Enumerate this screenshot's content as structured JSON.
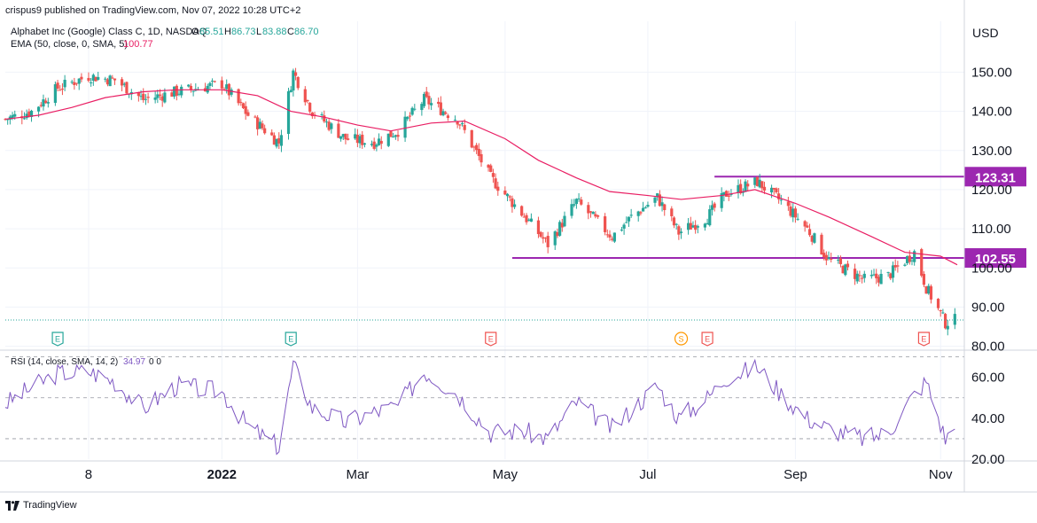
{
  "publisher_line": "crispus9 published on TradingView.com, Nov 07, 2022 10:28 UTC+2",
  "symbol_line": {
    "name": "Alphabet Inc (Google) Class C, 1D, NASDAQ",
    "o_label": "O",
    "o": "85.51",
    "h_label": "H",
    "h": "86.73",
    "l_label": "L",
    "l": "83.88",
    "c_label": "C",
    "c": "86.70"
  },
  "ema_line": {
    "label": "EMA (50, close, 0, SMA, 5)",
    "value": "100.77"
  },
  "rsi_line": {
    "label": "RSI (14, close, SMA, 14, 2)",
    "value": "34.97",
    "extra": "0 0"
  },
  "currency": "USD",
  "footer_brand": "TradingView",
  "colors": {
    "up": "#26a69a",
    "down": "#ef5350",
    "ema": "#e91e63",
    "rsi": "#7e57c2",
    "level": "#9c27b0",
    "grid": "#f0f3fa",
    "axis_text": "#131722",
    "earnings": "#ef5350",
    "earnings_green": "#26a69a",
    "split": "#ff9800"
  },
  "chart_data": [
    {
      "type": "candlestick",
      "title": "Alphabet Inc (Google) Class C, 1D, NASDAQ",
      "ylabel": "USD",
      "ylim": [
        79,
        163
      ],
      "y_ticks": [
        "150.00",
        "140.00",
        "130.00",
        "120.00",
        "110.00",
        "100.00",
        "90.00",
        "80.00"
      ],
      "x_ticks": [
        "8",
        "2022",
        "Mar",
        "May",
        "Jul",
        "Sep",
        "Nov"
      ],
      "x_tick_dates": [
        "2021-11-08",
        "2022-01-03",
        "2022-03-01",
        "2022-05-02",
        "2022-07-01",
        "2022-09-01",
        "2022-11-01"
      ],
      "x_range": [
        "2021-10-04",
        "2022-11-08"
      ],
      "last_price": 86.7,
      "levels": [
        {
          "label": "123.31",
          "value": 123.31,
          "start": "2022-07-29"
        },
        {
          "label": "102.55",
          "value": 102.55,
          "start": "2022-05-05"
        }
      ],
      "series": [
        {
          "name": "EMA (50, close, 0, SMA, 5)",
          "x": [
            "2021-10-04",
            "2021-10-18",
            "2021-11-01",
            "2021-11-15",
            "2021-12-01",
            "2021-12-15",
            "2022-01-03",
            "2022-01-18",
            "2022-02-01",
            "2022-02-15",
            "2022-03-01",
            "2022-03-15",
            "2022-04-01",
            "2022-04-15",
            "2022-05-02",
            "2022-05-16",
            "2022-06-01",
            "2022-06-15",
            "2022-07-01",
            "2022-07-15",
            "2022-08-01",
            "2022-08-15",
            "2022-09-01",
            "2022-09-15",
            "2022-10-03",
            "2022-10-17",
            "2022-11-01",
            "2022-11-08"
          ],
          "values": [
            138,
            139,
            141,
            143.5,
            145,
            145.5,
            145.5,
            144,
            140,
            138.5,
            136.5,
            135,
            137,
            137.5,
            133,
            127.5,
            123,
            119.5,
            118.5,
            117.5,
            118.5,
            120,
            116.5,
            113,
            108,
            104,
            103,
            100.8
          ]
        }
      ],
      "events": [
        {
          "label": "E",
          "date": "2021-10-26",
          "kind": "earnings",
          "color": "green"
        },
        {
          "label": "E",
          "date": "2022-02-01",
          "kind": "earnings",
          "color": "green"
        },
        {
          "label": "E",
          "date": "2022-04-26",
          "kind": "earnings",
          "color": "red"
        },
        {
          "label": "S",
          "date": "2022-07-15",
          "kind": "split",
          "color": "orange"
        },
        {
          "label": "E",
          "date": "2022-07-26",
          "kind": "earnings",
          "color": "red"
        },
        {
          "label": "E",
          "date": "2022-10-25",
          "kind": "earnings",
          "color": "red"
        }
      ],
      "candle_keypoints": {
        "x": [
          "2021-10-04",
          "2021-10-15",
          "2021-10-26",
          "2021-11-08",
          "2021-11-19",
          "2021-12-01",
          "2021-12-15",
          "2022-01-03",
          "2022-01-14",
          "2022-01-27",
          "2022-02-02",
          "2022-02-10",
          "2022-02-24",
          "2022-03-08",
          "2022-03-18",
          "2022-03-29",
          "2022-04-12",
          "2022-04-26",
          "2022-05-09",
          "2022-05-20",
          "2022-06-01",
          "2022-06-16",
          "2022-06-24",
          "2022-07-05",
          "2022-07-14",
          "2022-07-26",
          "2022-08-03",
          "2022-08-16",
          "2022-08-26",
          "2022-09-06",
          "2022-09-15",
          "2022-09-30",
          "2022-10-10",
          "2022-10-21",
          "2022-10-26",
          "2022-11-03",
          "2022-11-07"
        ],
        "close": [
          138,
          140,
          146,
          149,
          148,
          143,
          145,
          147,
          139,
          132,
          150,
          140,
          133,
          132,
          135,
          143,
          138,
          123,
          114,
          106,
          117,
          108,
          113,
          118,
          109,
          113,
          119,
          122,
          117,
          110,
          102,
          97,
          98,
          104,
          95,
          86,
          86.7
        ]
      }
    },
    {
      "type": "line",
      "title": "RSI (14, close, SMA, 14, 2)",
      "ylabel": "",
      "ylim": [
        20,
        72
      ],
      "y_ticks": [
        "60.00",
        "40.00",
        "20.00"
      ],
      "bands": [
        70,
        50,
        30
      ],
      "series": [
        {
          "name": "RSI (14, close, SMA, 14, 2)",
          "x": [
            "2021-10-04",
            "2021-10-15",
            "2021-10-26",
            "2021-11-08",
            "2021-11-19",
            "2021-12-01",
            "2021-12-15",
            "2022-01-03",
            "2022-01-14",
            "2022-01-27",
            "2022-02-02",
            "2022-02-10",
            "2022-02-24",
            "2022-03-08",
            "2022-03-18",
            "2022-03-29",
            "2022-04-12",
            "2022-04-26",
            "2022-05-09",
            "2022-05-20",
            "2022-06-01",
            "2022-06-16",
            "2022-06-24",
            "2022-07-05",
            "2022-07-14",
            "2022-07-26",
            "2022-08-03",
            "2022-08-16",
            "2022-08-26",
            "2022-09-06",
            "2022-09-15",
            "2022-09-30",
            "2022-10-10",
            "2022-10-21",
            "2022-10-26",
            "2022-11-03",
            "2022-11-07"
          ],
          "values": [
            47,
            55,
            62,
            63,
            58,
            45,
            56,
            53,
            36,
            26,
            66,
            45,
            38,
            43,
            46,
            63,
            52,
            33,
            34,
            30,
            48,
            35,
            44,
            56,
            40,
            50,
            60,
            65,
            52,
            40,
            35,
            30,
            33,
            52,
            58,
            30,
            35
          ]
        }
      ]
    }
  ]
}
